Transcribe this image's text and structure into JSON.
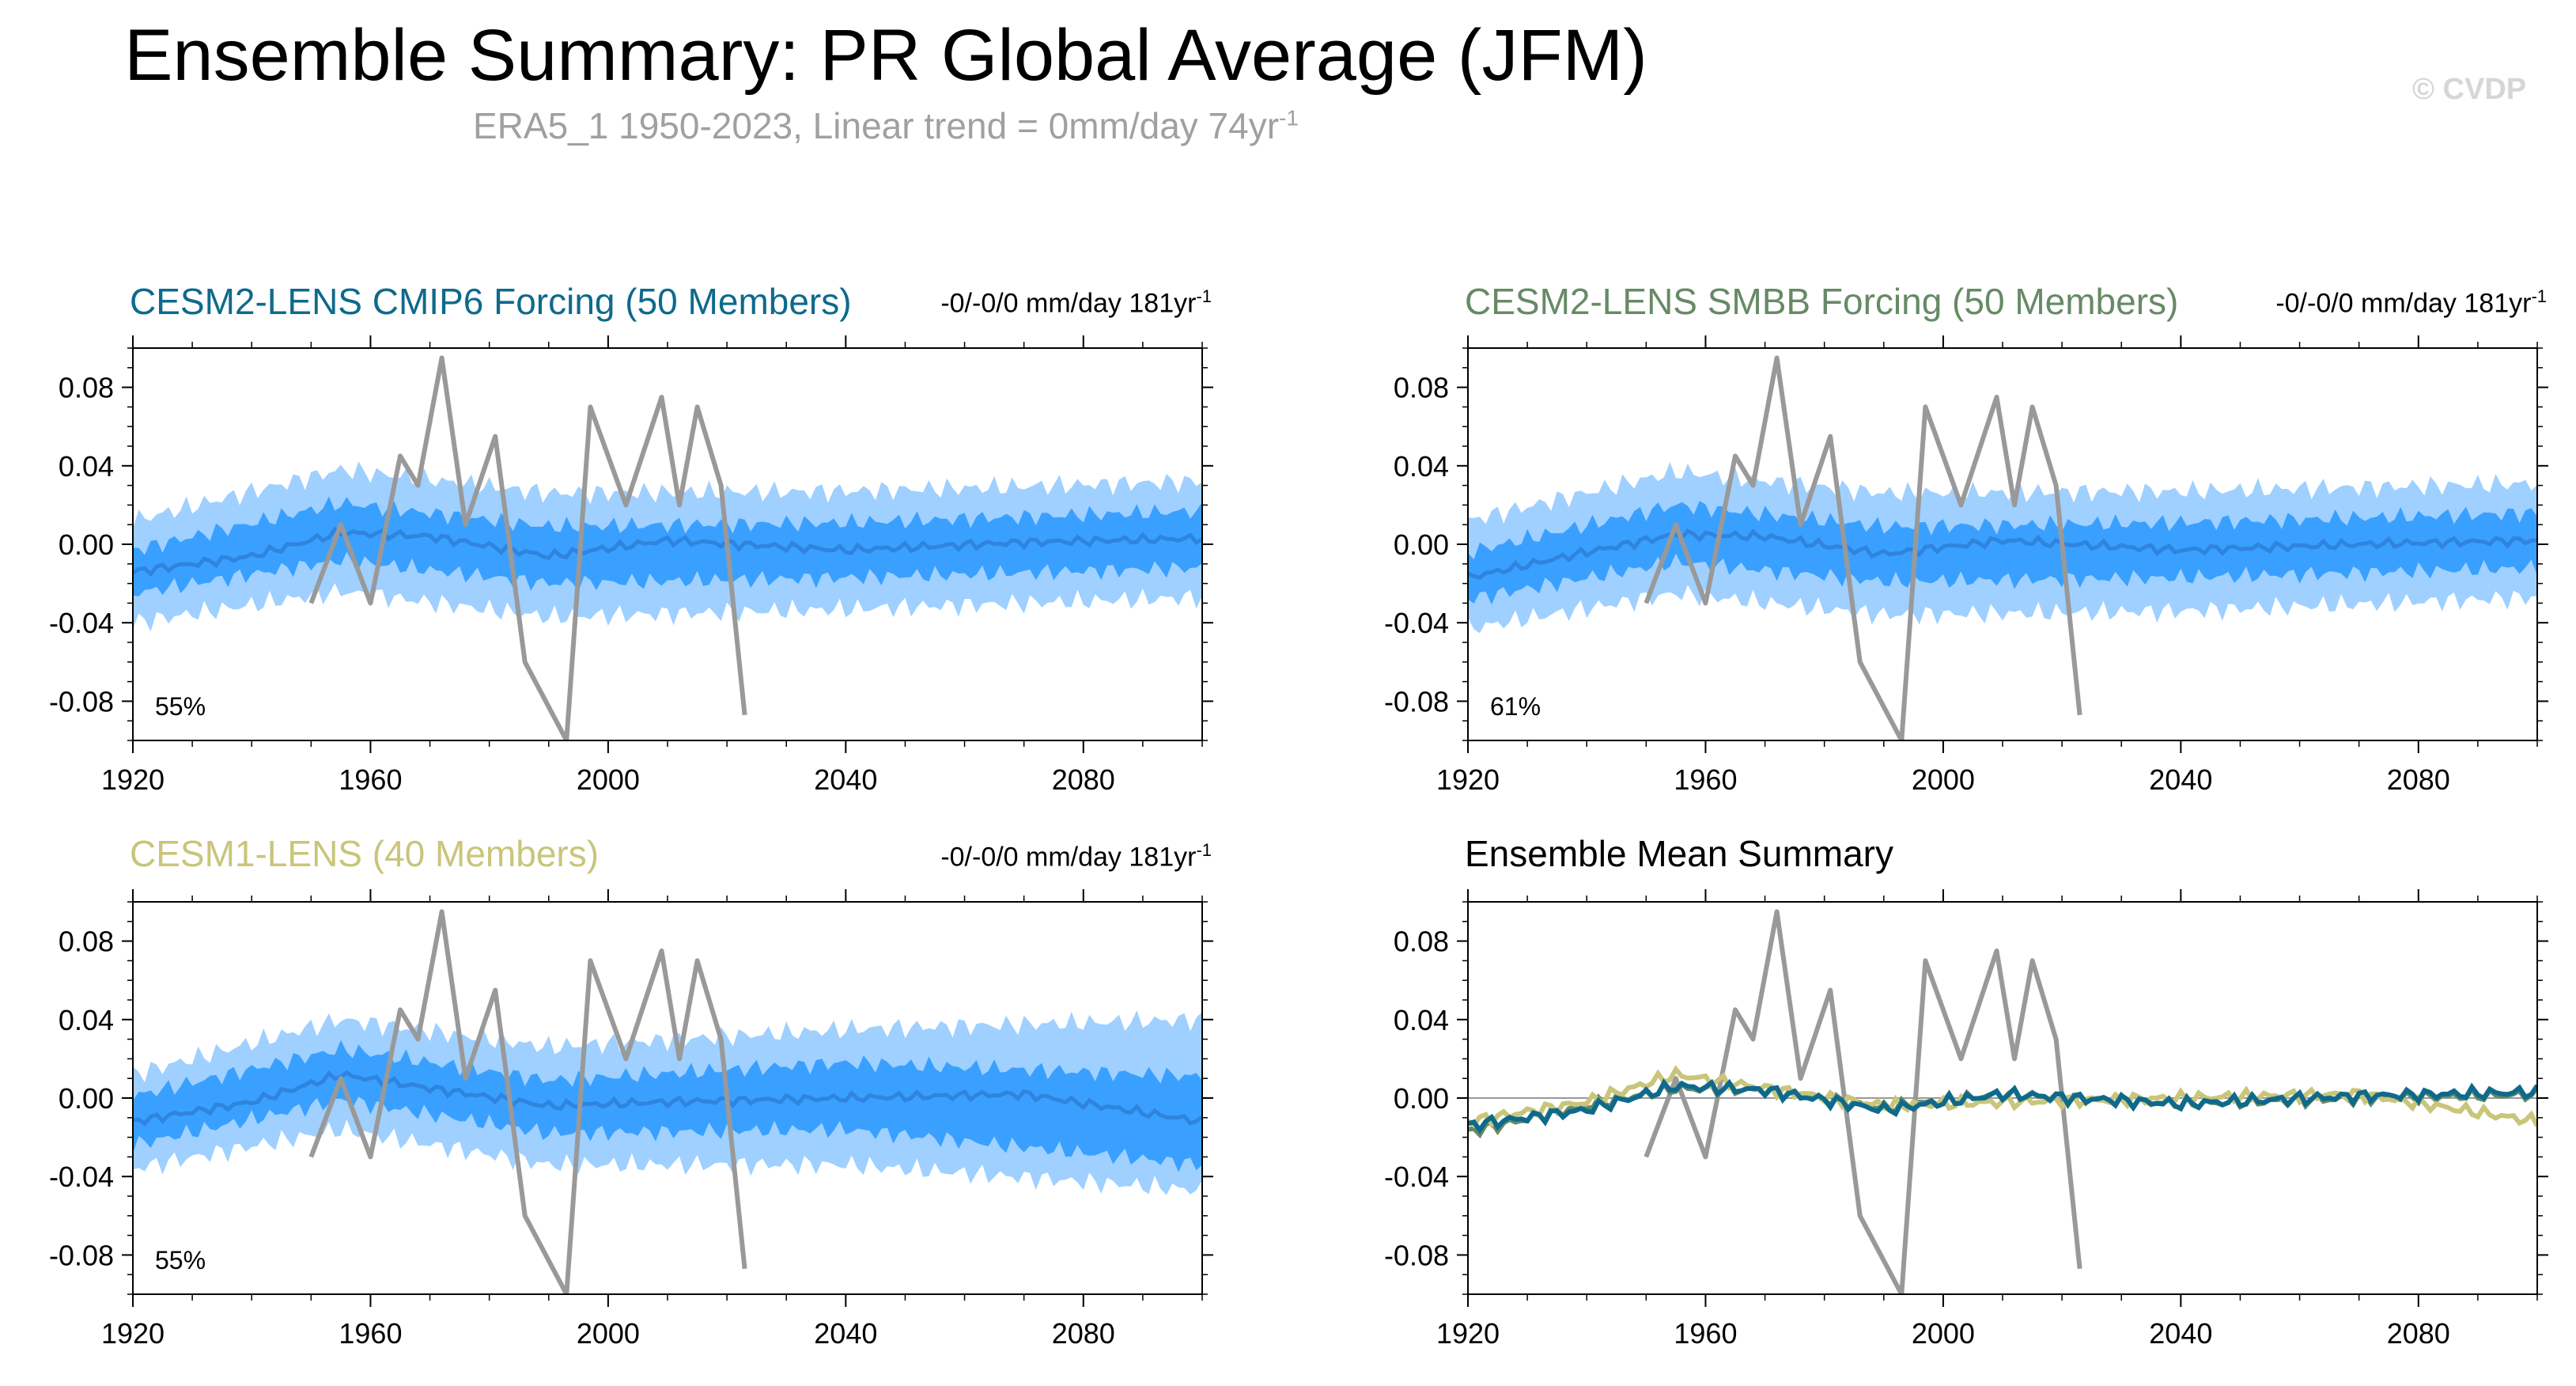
{
  "title": "Ensemble Summary: PR Global Average (JFM)",
  "subtitle": {
    "text": "ERA5_1 1950-2023, Linear trend = 0mm/day 74yr",
    "superscript": "-1",
    "color": "#a0a0a0"
  },
  "watermark": "© CVDP",
  "colors": {
    "band_outer": "#9fd0ff",
    "band_inner": "#3aa0ff",
    "ensemble_mean": "#2f84de",
    "observation": "#999999",
    "cesm2_cmip6": "#0e6a8c",
    "cesm2_smbb": "#668a66",
    "cesm1": "#c9c57a",
    "zero_line": "#9a9a9a"
  },
  "panels": [
    {
      "id": "cesm2-cmip6",
      "title": "CESM2-LENS CMIP6 Forcing (50 Members)",
      "title_color": "#0e6a8c",
      "trend_text": "-0/-0/0 mm/day 181yr",
      "trend_superscript": "-1",
      "percent_label": "55%"
    },
    {
      "id": "cesm2-smbb",
      "title": "CESM2-LENS SMBB Forcing (50 Members)",
      "title_color": "#668a66",
      "trend_text": "-0/-0/0 mm/day 181yr",
      "trend_superscript": "-1",
      "percent_label": "61%"
    },
    {
      "id": "cesm1",
      "title": "CESM1-LENS (40 Members)",
      "title_color": "#c9c57a",
      "trend_text": "-0/-0/0 mm/day 181yr",
      "trend_superscript": "-1",
      "percent_label": "55%"
    },
    {
      "id": "summary",
      "title": "Ensemble Mean Summary",
      "title_color": "#000000"
    }
  ],
  "chart_data": [
    {
      "type": "area",
      "panel": "cesm2-cmip6",
      "x_range": [
        1920,
        2100
      ],
      "ylim": [
        -0.1,
        0.1
      ],
      "x_ticks": [
        "1920",
        "1960",
        "2000",
        "2040",
        "2080"
      ],
      "y_ticks": [
        "0.08",
        "0.04",
        "0.00",
        "-0.04",
        "-0.08"
      ],
      "grid": false,
      "series": [
        {
          "role": "ensemble mean",
          "x": [
            1920,
            1940,
            1955,
            1970,
            1990,
            2010,
            2040,
            2070,
            2100
          ],
          "y": [
            -0.014,
            -0.006,
            0.006,
            0.004,
            -0.006,
            0.002,
            -0.003,
            0.001,
            0.003
          ]
        },
        {
          "role": "inner spread",
          "x": [
            1920,
            1955,
            1990,
            2040,
            2100
          ],
          "lower": [
            -0.025,
            -0.008,
            -0.02,
            -0.017,
            -0.012
          ],
          "upper": [
            -0.003,
            0.021,
            0.009,
            0.011,
            0.017
          ]
        },
        {
          "role": "outer spread",
          "x": [
            1920,
            1955,
            1990,
            2040,
            2100
          ],
          "lower": [
            -0.04,
            -0.024,
            -0.037,
            -0.033,
            -0.027
          ],
          "upper": [
            0.012,
            0.038,
            0.026,
            0.027,
            0.032
          ]
        },
        {
          "role": "observation",
          "x": [
            1950,
            1955,
            1960,
            1965,
            1968,
            1972,
            1976,
            1981,
            1986,
            1993,
            1997,
            2003,
            2009,
            2012,
            2015,
            2019,
            2023
          ],
          "y": [
            -0.03,
            0.01,
            -0.03,
            0.045,
            0.03,
            0.095,
            0.01,
            0.055,
            -0.06,
            -0.1,
            0.07,
            0.02,
            0.075,
            0.02,
            0.07,
            0.03,
            -0.087
          ]
        }
      ]
    },
    {
      "type": "area",
      "panel": "cesm2-smbb",
      "x_range": [
        1920,
        2100
      ],
      "ylim": [
        -0.1,
        0.1
      ],
      "x_ticks": [
        "1920",
        "1960",
        "2000",
        "2040",
        "2080"
      ],
      "y_ticks": [
        "0.08",
        "0.04",
        "0.00",
        "-0.04",
        "-0.08"
      ],
      "grid": false,
      "series": [
        {
          "role": "ensemble mean",
          "x": [
            1920,
            1940,
            1955,
            1970,
            1990,
            2010,
            2040,
            2070,
            2100
          ],
          "y": [
            -0.017,
            -0.004,
            0.005,
            0.004,
            -0.005,
            0.002,
            -0.003,
            0.0,
            0.002
          ]
        },
        {
          "role": "inner spread",
          "x": [
            1920,
            1955,
            1990,
            2040,
            2100
          ],
          "lower": [
            -0.028,
            -0.009,
            -0.019,
            -0.017,
            -0.012
          ],
          "upper": [
            -0.004,
            0.02,
            0.009,
            0.011,
            0.016
          ]
        },
        {
          "role": "outer spread",
          "x": [
            1920,
            1955,
            1990,
            2040,
            2100
          ],
          "lower": [
            -0.043,
            -0.025,
            -0.036,
            -0.034,
            -0.027
          ],
          "upper": [
            0.012,
            0.037,
            0.026,
            0.027,
            0.031
          ]
        },
        {
          "role": "observation",
          "x": [
            1950,
            1955,
            1960,
            1965,
            1968,
            1972,
            1976,
            1981,
            1986,
            1993,
            1997,
            2003,
            2009,
            2012,
            2015,
            2019,
            2023
          ],
          "y": [
            -0.03,
            0.01,
            -0.03,
            0.045,
            0.03,
            0.095,
            0.01,
            0.055,
            -0.06,
            -0.1,
            0.07,
            0.02,
            0.075,
            0.02,
            0.07,
            0.03,
            -0.087
          ]
        }
      ]
    },
    {
      "type": "area",
      "panel": "cesm1",
      "x_range": [
        1920,
        2100
      ],
      "ylim": [
        -0.1,
        0.1
      ],
      "x_ticks": [
        "1920",
        "1960",
        "2000",
        "2040",
        "2080"
      ],
      "y_ticks": [
        "0.08",
        "0.04",
        "0.00",
        "-0.04",
        "-0.08"
      ],
      "grid": false,
      "series": [
        {
          "role": "ensemble mean",
          "x": [
            1920,
            1940,
            1955,
            1970,
            1990,
            2010,
            2040,
            2070,
            2100
          ],
          "y": [
            -0.012,
            -0.002,
            0.012,
            0.005,
            -0.004,
            -0.002,
            0.0,
            0.002,
            -0.012
          ]
        },
        {
          "role": "inner spread",
          "x": [
            1920,
            1955,
            1990,
            2040,
            2100
          ],
          "lower": [
            -0.024,
            -0.001,
            -0.018,
            -0.016,
            -0.034
          ],
          "upper": [
            0.001,
            0.025,
            0.009,
            0.018,
            0.011
          ]
        },
        {
          "role": "outer spread",
          "x": [
            1920,
            1955,
            1990,
            2040,
            2100
          ],
          "lower": [
            -0.036,
            -0.016,
            -0.034,
            -0.034,
            -0.047
          ],
          "upper": [
            0.012,
            0.04,
            0.026,
            0.035,
            0.04
          ]
        },
        {
          "role": "observation",
          "x": [
            1950,
            1955,
            1960,
            1965,
            1968,
            1972,
            1976,
            1981,
            1986,
            1993,
            1997,
            2003,
            2009,
            2012,
            2015,
            2019,
            2023
          ],
          "y": [
            -0.03,
            0.01,
            -0.03,
            0.045,
            0.03,
            0.095,
            0.01,
            0.055,
            -0.06,
            -0.1,
            0.07,
            0.02,
            0.075,
            0.02,
            0.07,
            0.03,
            -0.087
          ]
        }
      ]
    },
    {
      "type": "line",
      "panel": "summary",
      "x_range": [
        1920,
        2100
      ],
      "ylim": [
        -0.1,
        0.1
      ],
      "x_ticks": [
        "1920",
        "1960",
        "2000",
        "2040",
        "2080"
      ],
      "y_ticks": [
        "0.08",
        "0.04",
        "0.00",
        "-0.04",
        "-0.08"
      ],
      "grid": false,
      "series": [
        {
          "role": "observation",
          "x": [
            1950,
            1955,
            1960,
            1965,
            1968,
            1972,
            1976,
            1981,
            1986,
            1993,
            1997,
            2003,
            2009,
            2012,
            2015,
            2019,
            2023
          ],
          "y": [
            -0.03,
            0.01,
            -0.03,
            0.045,
            0.03,
            0.095,
            0.01,
            0.055,
            -0.06,
            -0.1,
            0.07,
            0.02,
            0.075,
            0.02,
            0.07,
            0.03,
            -0.087
          ]
        },
        {
          "role": "CESM2-LENS SMBB mean",
          "x": [
            1920,
            1940,
            1955,
            1970,
            1990,
            2010,
            2040,
            2070,
            2100
          ],
          "y": [
            -0.017,
            -0.004,
            0.005,
            0.004,
            -0.005,
            0.002,
            -0.003,
            0.0,
            0.002
          ]
        },
        {
          "role": "CESM1-LENS mean",
          "x": [
            1920,
            1940,
            1955,
            1970,
            1990,
            2010,
            2040,
            2070,
            2100
          ],
          "y": [
            -0.012,
            -0.002,
            0.012,
            0.005,
            -0.004,
            -0.002,
            0.0,
            0.002,
            -0.012
          ]
        },
        {
          "role": "CESM2-LENS CMIP6 mean",
          "x": [
            1920,
            1940,
            1955,
            1970,
            1990,
            2010,
            2040,
            2070,
            2100
          ],
          "y": [
            -0.014,
            -0.006,
            0.006,
            0.004,
            -0.006,
            0.002,
            -0.003,
            0.001,
            0.003
          ]
        }
      ]
    }
  ]
}
